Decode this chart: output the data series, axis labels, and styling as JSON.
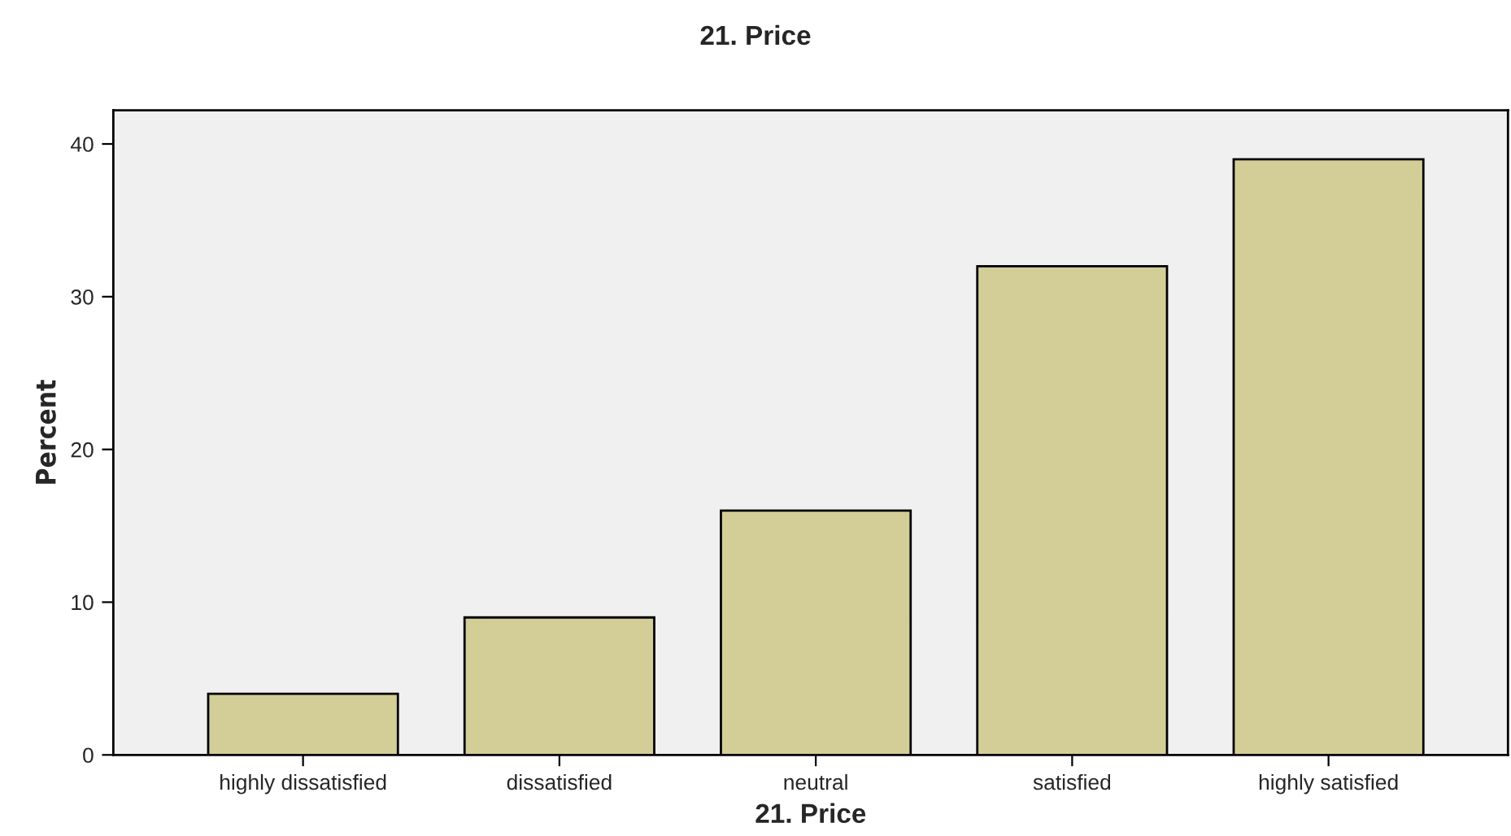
{
  "chart_data": {
    "type": "bar",
    "title": "21. Price",
    "xlabel": "21. Price",
    "ylabel": "Percent",
    "categories": [
      "highly dissatisfied",
      "dissatisfied",
      "neutral",
      "satisfied",
      "highly satisfied"
    ],
    "values": [
      4,
      9,
      16,
      32,
      39
    ],
    "color": "#d3ce97",
    "ylim": [
      0,
      42.2
    ],
    "yticks": [
      0,
      10,
      20,
      30,
      40
    ],
    "grid": false,
    "legend": false
  }
}
